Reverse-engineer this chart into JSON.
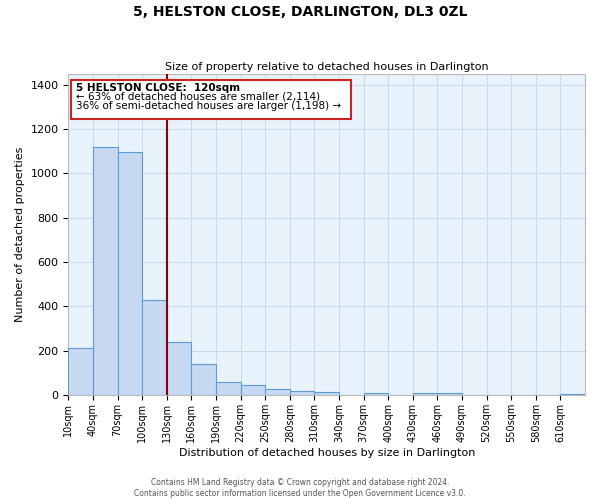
{
  "title": "5, HELSTON CLOSE, DARLINGTON, DL3 0ZL",
  "subtitle": "Size of property relative to detached houses in Darlington",
  "xlabel": "Distribution of detached houses by size in Darlington",
  "ylabel": "Number of detached properties",
  "footer_line1": "Contains HM Land Registry data © Crown copyright and database right 2024.",
  "footer_line2": "Contains public sector information licensed under the Open Government Licence v3.0.",
  "bar_labels": [
    "10sqm",
    "40sqm",
    "70sqm",
    "100sqm",
    "130sqm",
    "160sqm",
    "190sqm",
    "220sqm",
    "250sqm",
    "280sqm",
    "310sqm",
    "340sqm",
    "370sqm",
    "400sqm",
    "430sqm",
    "460sqm",
    "490sqm",
    "520sqm",
    "550sqm",
    "580sqm",
    "610sqm"
  ],
  "bar_values": [
    210,
    1120,
    1095,
    430,
    240,
    140,
    60,
    47,
    25,
    18,
    15,
    0,
    10,
    0,
    8,
    8,
    0,
    0,
    0,
    0,
    5
  ],
  "bar_color": "#c6d9f0",
  "bar_edge_color": "#5b9bd5",
  "background_color": "#e8f2fb",
  "ylim": [
    0,
    1450
  ],
  "yticks": [
    0,
    200,
    400,
    600,
    800,
    1000,
    1200,
    1400
  ],
  "annotation_line1": "5 HELSTON CLOSE:  120sqm",
  "annotation_line2": "← 63% of detached houses are smaller (2,114)",
  "annotation_line3": "36% of semi-detached houses are larger (1,198) →",
  "vline_x_data": 130,
  "vline_color": "#8b0000",
  "grid_color": "#c8d8e8",
  "box_edge_color": "#cc2222"
}
